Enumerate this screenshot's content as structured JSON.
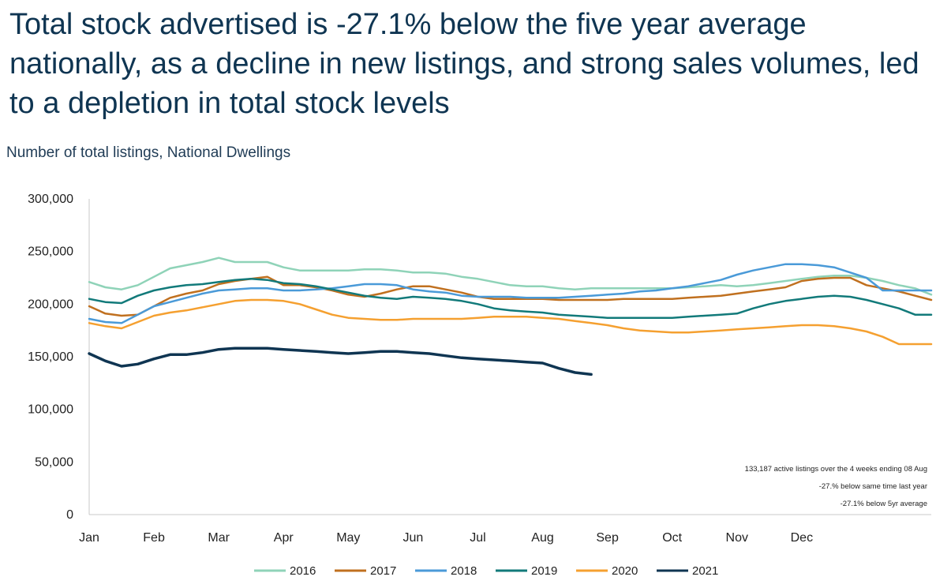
{
  "headline": "Total stock advertised is -27.1% below the five year average nationally, as a decline in new listings, and strong sales volumes, led to a depletion in total stock levels",
  "subtitle": "Number of total listings, National Dwellings",
  "chart_data": {
    "type": "line",
    "title": "Number of total listings, National Dwellings",
    "xlabel": "",
    "ylabel": "",
    "ylim": [
      0,
      300000
    ],
    "y_ticks": [
      0,
      50000,
      100000,
      150000,
      200000,
      250000,
      300000
    ],
    "y_tick_labels": [
      "0",
      "50,000",
      "100,000",
      "150,000",
      "200,000",
      "250,000",
      "300,000"
    ],
    "x_unit": "week of year (1 = first week of Jan)",
    "xlim": [
      1,
      53
    ],
    "month_labels": [
      "Jan",
      "Feb",
      "Mar",
      "Apr",
      "May",
      "Jun",
      "Jul",
      "Aug",
      "Sep",
      "Oct",
      "Nov",
      "Dec"
    ],
    "month_label_weeks": [
      1,
      5,
      9,
      13,
      17,
      21,
      25,
      29,
      33,
      37,
      41,
      45
    ],
    "legend_position": "bottom",
    "grid": false,
    "series": [
      {
        "name": "2016",
        "color": "#8fd3b8",
        "values": [
          221000,
          216000,
          214000,
          218000,
          226000,
          234000,
          237000,
          240000,
          244000,
          240000,
          240000,
          240000,
          235000,
          232000,
          232000,
          232000,
          232000,
          233000,
          233000,
          232000,
          230000,
          230000,
          229000,
          226000,
          224000,
          221000,
          218000,
          217000,
          217000,
          215000,
          214000,
          215000,
          215000,
          215000,
          215000,
          215000,
          215000,
          216000,
          217000,
          218000,
          217000,
          218000,
          220000,
          222000,
          224000,
          226000,
          227000,
          227000,
          225000,
          222000,
          218000,
          215000,
          209000
        ]
      },
      {
        "name": "2017",
        "color": "#c0701f",
        "values": [
          198000,
          191000,
          189000,
          190000,
          198000,
          206000,
          210000,
          213000,
          219000,
          222000,
          224000,
          226000,
          218000,
          218000,
          216000,
          213000,
          209000,
          207000,
          210000,
          214000,
          217000,
          217000,
          214000,
          211000,
          207000,
          205000,
          205000,
          205000,
          205000,
          204000,
          204000,
          204000,
          204000,
          205000,
          205000,
          205000,
          205000,
          206000,
          207000,
          208000,
          210000,
          212000,
          214000,
          216000,
          222000,
          224000,
          225000,
          225000,
          218000,
          215000,
          212000,
          208000,
          204000
        ]
      },
      {
        "name": "2018",
        "color": "#4a9ad8",
        "values": [
          186000,
          183000,
          182000,
          190000,
          198000,
          202000,
          206000,
          210000,
          213000,
          214000,
          215000,
          215000,
          213000,
          213000,
          214000,
          215000,
          217000,
          219000,
          219000,
          218000,
          214000,
          212000,
          211000,
          208000,
          207000,
          207000,
          207000,
          206000,
          206000,
          206000,
          207000,
          208000,
          209000,
          210000,
          212000,
          213000,
          215000,
          217000,
          220000,
          223000,
          228000,
          232000,
          235000,
          238000,
          238000,
          237000,
          235000,
          230000,
          225000,
          213000,
          213000,
          213000,
          213000
        ]
      },
      {
        "name": "2019",
        "color": "#127a7a",
        "values": [
          205000,
          202000,
          201000,
          208000,
          213000,
          216000,
          218000,
          219000,
          221000,
          223000,
          224000,
          223000,
          220000,
          219000,
          217000,
          214000,
          211000,
          208000,
          206000,
          205000,
          207000,
          206000,
          205000,
          203000,
          200000,
          196000,
          194000,
          193000,
          192000,
          190000,
          189000,
          188000,
          187000,
          187000,
          187000,
          187000,
          187000,
          188000,
          189000,
          190000,
          191000,
          196000,
          200000,
          203000,
          205000,
          207000,
          208000,
          207000,
          204000,
          200000,
          196000,
          190000,
          190000
        ]
      },
      {
        "name": "2020",
        "color": "#f5a030",
        "values": [
          182000,
          179000,
          177000,
          183000,
          189000,
          192000,
          194000,
          197000,
          200000,
          203000,
          204000,
          204000,
          203000,
          200000,
          195000,
          190000,
          187000,
          186000,
          185000,
          185000,
          186000,
          186000,
          186000,
          186000,
          187000,
          188000,
          188000,
          188000,
          187000,
          186000,
          184000,
          182000,
          180000,
          177000,
          175000,
          174000,
          173000,
          173000,
          174000,
          175000,
          176000,
          177000,
          178000,
          179000,
          180000,
          180000,
          179000,
          177000,
          174000,
          169000,
          162000,
          162000,
          162000
        ]
      },
      {
        "name": "2021",
        "color": "#0f3552",
        "values": [
          153000,
          146000,
          141000,
          143000,
          148000,
          152000,
          152000,
          154000,
          157000,
          158000,
          158000,
          158000,
          157000,
          156000,
          155000,
          154000,
          153000,
          154000,
          155000,
          155000,
          154000,
          153000,
          151000,
          149000,
          148000,
          147000,
          146000,
          145000,
          144000,
          139000,
          135000,
          133187
        ]
      }
    ],
    "annotations": [
      "133,187 active listings over the 4 weeks ending 08 Aug",
      "-27.% below same time last year",
      "-27.1% below 5yr average"
    ]
  }
}
